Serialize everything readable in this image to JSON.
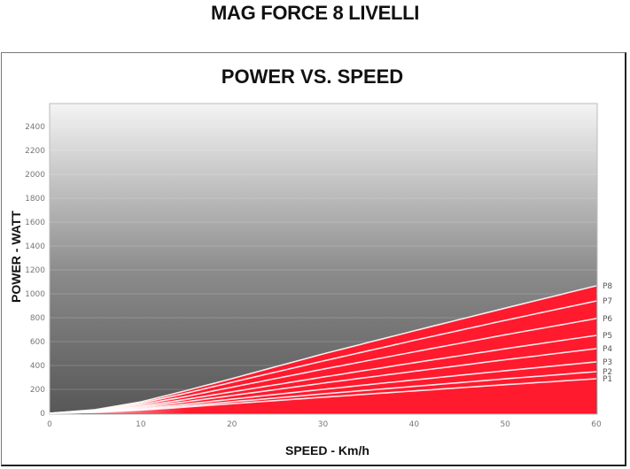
{
  "header": {
    "title": "MAG FORCE 8 LIVELLI"
  },
  "chart_data": {
    "type": "area",
    "title": "POWER VS. SPEED",
    "xlabel": "SPEED - Km/h",
    "ylabel": "POWER - WATT",
    "xlim": [
      0,
      60
    ],
    "ylim": [
      0,
      2500
    ],
    "x_ticks": [
      0,
      10,
      20,
      30,
      40,
      50,
      60
    ],
    "y_ticks": [
      0,
      200,
      400,
      600,
      800,
      1000,
      1200,
      1400,
      1600,
      1800,
      2000,
      2200,
      2400
    ],
    "grid": true,
    "legend_position": "right-end labels",
    "colors": {
      "fill": "#ff1a2e",
      "line": "#ffffff",
      "bg_top": "#f2f2f2",
      "bg_bottom": "#595959"
    },
    "x": [
      0,
      5,
      10,
      15,
      20,
      30,
      40,
      50,
      60
    ],
    "series": [
      {
        "name": "P1",
        "values": [
          0,
          8,
          26,
          52,
          80,
          134,
          187,
          239,
          289
        ]
      },
      {
        "name": "P2",
        "values": [
          0,
          10,
          31,
          62,
          96,
          162,
          225,
          288,
          348
        ]
      },
      {
        "name": "P3",
        "values": [
          0,
          12,
          38,
          76,
          118,
          200,
          279,
          356,
          430
        ]
      },
      {
        "name": "P4",
        "values": [
          0,
          15,
          48,
          96,
          148,
          252,
          351,
          448,
          541
        ]
      },
      {
        "name": "P5",
        "values": [
          0,
          18,
          58,
          116,
          179,
          303,
          423,
          540,
          652
        ]
      },
      {
        "name": "P6",
        "values": [
          0,
          22,
          71,
          141,
          218,
          369,
          514,
          657,
          793
        ]
      },
      {
        "name": "P7",
        "values": [
          0,
          26,
          84,
          168,
          259,
          437,
          610,
          778,
          940
        ]
      },
      {
        "name": "P8",
        "values": [
          0,
          30,
          95,
          190,
          290,
          496,
          690,
          880,
          1067
        ]
      }
    ]
  }
}
